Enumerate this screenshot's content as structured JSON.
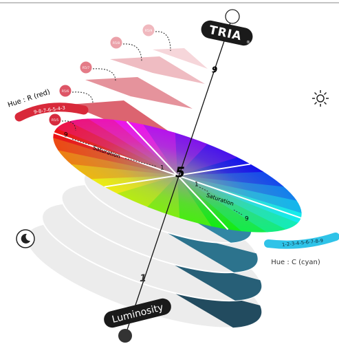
{
  "brand": {
    "name": "TRIA",
    "mark": "®"
  },
  "axis": {
    "label": "Luminosity",
    "top": "9",
    "center": "5",
    "bottom": "1"
  },
  "hue_red": {
    "label": "Hue : R (red)",
    "scale": "9-8-7-6-5-4-3"
  },
  "hue_cyan": {
    "label": "Hue : C (cyan)",
    "scale": "1-2-3-4-5-6-7-8-9"
  },
  "saturation_left": {
    "label": "Saturation",
    "start": "9",
    "end": "1"
  },
  "saturation_right": {
    "label": "Saturation",
    "start": "1",
    "end": "9"
  },
  "swatches": [
    "R5/9",
    "R5/8",
    "R5/7",
    "R5/6",
    "R5/5"
  ]
}
